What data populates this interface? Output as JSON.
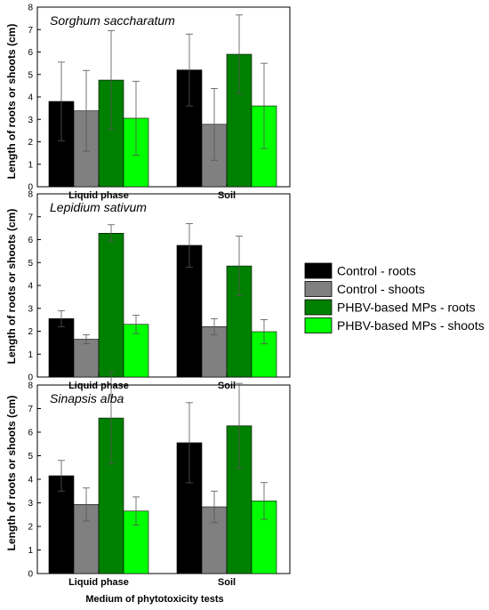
{
  "figure": {
    "ylabel": "Length of roots or shoots (cm)",
    "xlabel": "Medium of phytotoxicity tests"
  },
  "legend": [
    {
      "label": "Control - roots",
      "color": "#000000"
    },
    {
      "label": "Control - shoots",
      "color": "#808080"
    },
    {
      "label": "PHBV-based MPs - roots",
      "color": "#008000"
    },
    {
      "label": "PHBV-based MPs - shoots",
      "color": "#00ff00"
    }
  ],
  "chart_data": [
    {
      "type": "bar",
      "title": "Sorghum saccharatum",
      "categories": [
        "Liquid phase",
        "Soil"
      ],
      "ylim": [
        0,
        8
      ],
      "yticks": [
        0,
        1,
        2,
        3,
        4,
        5,
        6,
        7,
        8
      ],
      "series": [
        {
          "name": "Control - roots",
          "color": "#000000",
          "values": [
            3.8,
            5.2
          ],
          "errors": [
            1.75,
            1.6
          ]
        },
        {
          "name": "Control - shoots",
          "color": "#808080",
          "values": [
            3.38,
            2.78
          ],
          "errors": [
            1.8,
            1.6
          ]
        },
        {
          "name": "PHBV-based MPs - roots",
          "color": "#008000",
          "values": [
            4.75,
            5.9
          ],
          "errors": [
            2.2,
            1.75
          ]
        },
        {
          "name": "PHBV-based MPs - shoots",
          "color": "#00ff00",
          "values": [
            3.05,
            3.6
          ],
          "errors": [
            1.65,
            1.9
          ]
        }
      ]
    },
    {
      "type": "bar",
      "title": "Lepidium sativum",
      "categories": [
        "Liquid phase",
        "Soil"
      ],
      "ylim": [
        0,
        8
      ],
      "yticks": [
        0,
        1,
        2,
        3,
        4,
        5,
        6,
        7,
        8
      ],
      "series": [
        {
          "name": "Control - roots",
          "color": "#000000",
          "values": [
            2.55,
            5.75
          ],
          "errors": [
            0.35,
            0.95
          ]
        },
        {
          "name": "Control - shoots",
          "color": "#808080",
          "values": [
            1.65,
            2.2
          ],
          "errors": [
            0.2,
            0.35
          ]
        },
        {
          "name": "PHBV-based MPs - roots",
          "color": "#008000",
          "values": [
            6.28,
            4.85
          ],
          "errors": [
            0.37,
            1.3
          ]
        },
        {
          "name": "PHBV-based MPs - shoots",
          "color": "#00ff00",
          "values": [
            2.3,
            1.98
          ],
          "errors": [
            0.4,
            0.53
          ]
        }
      ]
    },
    {
      "type": "bar",
      "title": "Sinapsis alba",
      "categories": [
        "Liquid phase",
        "Soil"
      ],
      "ylim": [
        0,
        8
      ],
      "yticks": [
        0,
        1,
        2,
        3,
        4,
        5,
        6,
        7,
        8
      ],
      "series": [
        {
          "name": "Control - roots",
          "color": "#000000",
          "values": [
            4.15,
            5.55
          ],
          "errors": [
            0.65,
            1.7
          ]
        },
        {
          "name": "Control - shoots",
          "color": "#808080",
          "values": [
            2.93,
            2.83
          ],
          "errors": [
            0.7,
            0.67
          ]
        },
        {
          "name": "PHBV-based MPs - roots",
          "color": "#008000",
          "values": [
            6.6,
            6.27
          ],
          "errors": [
            1.95,
            1.8
          ]
        },
        {
          "name": "PHBV-based MPs - shoots",
          "color": "#00ff00",
          "values": [
            2.65,
            3.08
          ],
          "errors": [
            0.6,
            0.78
          ]
        }
      ]
    }
  ]
}
